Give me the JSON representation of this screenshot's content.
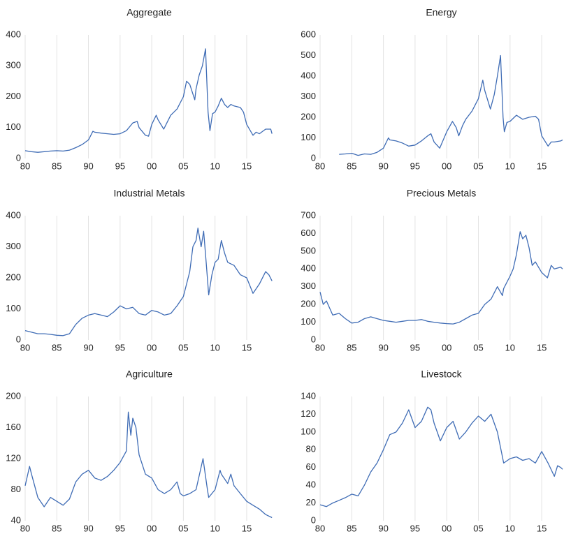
{
  "chart_data": [
    {
      "type": "line",
      "title": "Aggregate",
      "color": "#3f6cb5",
      "grid": true,
      "x": [
        1980,
        1981,
        1982,
        1983,
        1984,
        1985,
        1986,
        1987,
        1988,
        1989,
        1990,
        1990.7,
        1991,
        1992,
        1993,
        1994,
        1995,
        1996,
        1997,
        1997.7,
        1998,
        1999,
        1999.5,
        2000,
        2000.7,
        2001,
        2001.9,
        2002.5,
        2003,
        2004,
        2005,
        2005.5,
        2006,
        2006.8,
        2007,
        2007.5,
        2008,
        2008.5,
        2008.9,
        2009.2,
        2009.6,
        2010,
        2010.5,
        2011,
        2011.5,
        2012,
        2012.5,
        2013,
        2014,
        2014.5,
        2015,
        2016,
        2016.5,
        2017,
        2018,
        2018.8,
        2019
      ],
      "values": [
        25,
        22,
        20,
        22,
        24,
        25,
        24,
        27,
        35,
        45,
        60,
        88,
        85,
        82,
        80,
        78,
        80,
        90,
        115,
        120,
        100,
        75,
        72,
        110,
        140,
        125,
        95,
        120,
        140,
        160,
        200,
        250,
        240,
        190,
        225,
        270,
        300,
        355,
        150,
        90,
        145,
        150,
        170,
        195,
        175,
        165,
        175,
        170,
        165,
        150,
        110,
        75,
        85,
        80,
        95,
        95,
        80
      ],
      "xlim": [
        1980,
        2019.2
      ],
      "ylim": [
        0,
        400
      ],
      "yticks": [
        0,
        100,
        200,
        300,
        400
      ],
      "xticks": [
        {
          "value": 1980,
          "label": "80"
        },
        {
          "value": 1985,
          "label": "85"
        },
        {
          "value": 1990,
          "label": "90"
        },
        {
          "value": 1995,
          "label": "95"
        },
        {
          "value": 2000,
          "label": "00"
        },
        {
          "value": 2005,
          "label": "05"
        },
        {
          "value": 2010,
          "label": "10"
        },
        {
          "value": 2015,
          "label": "15"
        }
      ]
    },
    {
      "type": "line",
      "title": "Energy",
      "color": "#3f6cb5",
      "grid": true,
      "x": [
        1983,
        1984,
        1985,
        1986,
        1987,
        1988,
        1989,
        1990,
        1990.8,
        1991,
        1992,
        1993,
        1994,
        1995,
        1996,
        1997,
        1997.5,
        1998,
        1998.9,
        2000,
        2000.9,
        2001.5,
        2001.9,
        2002.5,
        2003,
        2004,
        2005,
        2005.7,
        2006,
        2006.9,
        2007.5,
        2008,
        2008.5,
        2008.9,
        2009.1,
        2009.5,
        2010,
        2011,
        2012,
        2013,
        2014,
        2014.5,
        2015,
        2016,
        2016.5,
        2017,
        2018,
        2018.3
      ],
      "values": [
        20,
        22,
        25,
        15,
        22,
        20,
        30,
        50,
        100,
        90,
        85,
        75,
        60,
        65,
        85,
        110,
        120,
        80,
        50,
        130,
        180,
        150,
        110,
        160,
        190,
        230,
        290,
        380,
        330,
        240,
        310,
        400,
        500,
        200,
        130,
        175,
        180,
        210,
        190,
        200,
        205,
        190,
        110,
        60,
        80,
        80,
        85,
        90
      ],
      "xlim": [
        1980,
        2018.3
      ],
      "ylim": [
        0,
        600
      ],
      "yticks": [
        0,
        100,
        200,
        300,
        400,
        500,
        600
      ],
      "xticks": [
        {
          "value": 1980,
          "label": "80"
        },
        {
          "value": 1985,
          "label": "85"
        },
        {
          "value": 1990,
          "label": "90"
        },
        {
          "value": 1995,
          "label": "95"
        },
        {
          "value": 2000,
          "label": "00"
        },
        {
          "value": 2005,
          "label": "05"
        },
        {
          "value": 2010,
          "label": "10"
        },
        {
          "value": 2015,
          "label": "15"
        }
      ]
    },
    {
      "type": "line",
      "title": "Industrial Metals",
      "color": "#3f6cb5",
      "grid": true,
      "x": [
        1980,
        1981,
        1982,
        1983,
        1984,
        1985,
        1986,
        1987,
        1988,
        1989,
        1990,
        1991,
        1992,
        1993,
        1994,
        1995,
        1996,
        1997,
        1998,
        1999,
        2000,
        2001,
        2002,
        2003,
        2004,
        2005,
        2006,
        2006.5,
        2007,
        2007.3,
        2007.8,
        2008.2,
        2008.6,
        2009,
        2009.5,
        2010,
        2010.5,
        2011,
        2011.5,
        2012,
        2013,
        2014,
        2015,
        2016,
        2017,
        2018,
        2018.5,
        2019
      ],
      "values": [
        30,
        25,
        20,
        20,
        18,
        15,
        14,
        20,
        50,
        70,
        80,
        85,
        80,
        75,
        90,
        110,
        100,
        105,
        85,
        80,
        95,
        90,
        80,
        85,
        110,
        140,
        220,
        300,
        320,
        360,
        300,
        350,
        250,
        145,
        210,
        250,
        260,
        320,
        280,
        250,
        240,
        210,
        200,
        150,
        180,
        220,
        210,
        190
      ],
      "xlim": [
        1980,
        2019.2
      ],
      "ylim": [
        0,
        400
      ],
      "yticks": [
        0,
        100,
        200,
        300,
        400
      ],
      "xticks": [
        {
          "value": 1980,
          "label": "80"
        },
        {
          "value": 1985,
          "label": "85"
        },
        {
          "value": 1990,
          "label": "90"
        },
        {
          "value": 1995,
          "label": "95"
        },
        {
          "value": 2000,
          "label": "00"
        },
        {
          "value": 2005,
          "label": "05"
        },
        {
          "value": 2010,
          "label": "10"
        },
        {
          "value": 2015,
          "label": "15"
        }
      ]
    },
    {
      "type": "line",
      "title": "Precious Metals",
      "color": "#3f6cb5",
      "grid": true,
      "x": [
        1980,
        1980.5,
        1981,
        1982,
        1983,
        1984,
        1985,
        1986,
        1987,
        1988,
        1989,
        1990,
        1991,
        1992,
        1993,
        1994,
        1995,
        1996,
        1997,
        1998,
        1999,
        2000,
        2001,
        2002,
        2003,
        2004,
        2005,
        2006,
        2007,
        2008,
        2008.8,
        2009,
        2010,
        2010.5,
        2011,
        2011.6,
        2012,
        2012.5,
        2013,
        2013.5,
        2014,
        2015,
        2015.9,
        2016.5,
        2017,
        2018,
        2018.3
      ],
      "values": [
        270,
        200,
        220,
        140,
        150,
        120,
        95,
        100,
        120,
        130,
        120,
        110,
        105,
        100,
        105,
        110,
        110,
        115,
        105,
        100,
        95,
        92,
        90,
        100,
        120,
        140,
        150,
        200,
        230,
        300,
        250,
        290,
        360,
        400,
        480,
        610,
        570,
        590,
        520,
        420,
        440,
        380,
        350,
        420,
        400,
        410,
        400
      ],
      "xlim": [
        1980,
        2018.3
      ],
      "ylim": [
        0,
        700
      ],
      "yticks": [
        0,
        100,
        200,
        300,
        400,
        500,
        600,
        700
      ],
      "xticks": [
        {
          "value": 1980,
          "label": "80"
        },
        {
          "value": 1985,
          "label": "85"
        },
        {
          "value": 1990,
          "label": "90"
        },
        {
          "value": 1995,
          "label": "95"
        },
        {
          "value": 2000,
          "label": "00"
        },
        {
          "value": 2005,
          "label": "05"
        },
        {
          "value": 2010,
          "label": "10"
        },
        {
          "value": 2015,
          "label": "15"
        }
      ]
    },
    {
      "type": "line",
      "title": "Agriculture",
      "color": "#3f6cb5",
      "grid": true,
      "x": [
        1980,
        1980.7,
        1981,
        1982,
        1983,
        1984,
        1985,
        1986,
        1987,
        1988,
        1989,
        1990,
        1991,
        1992,
        1993,
        1994,
        1995,
        1996,
        1996.3,
        1996.7,
        1997,
        1997.5,
        1998,
        1999,
        2000,
        2001,
        2002,
        2003,
        2004,
        2004.5,
        2005,
        2006,
        2007,
        2008.1,
        2008.8,
        2009,
        2010,
        2010.8,
        2011,
        2012,
        2012.5,
        2013,
        2014,
        2015,
        2016,
        2017,
        2018,
        2019
      ],
      "values": [
        85,
        110,
        100,
        70,
        58,
        70,
        65,
        60,
        68,
        90,
        100,
        105,
        95,
        92,
        97,
        105,
        115,
        130,
        180,
        150,
        172,
        160,
        125,
        100,
        95,
        80,
        75,
        80,
        90,
        75,
        72,
        75,
        80,
        120,
        80,
        70,
        80,
        105,
        100,
        88,
        100,
        85,
        75,
        65,
        60,
        55,
        48,
        44
      ],
      "xlim": [
        1980,
        2019.2
      ],
      "ylim": [
        40,
        200
      ],
      "yticks": [
        40,
        80,
        120,
        160,
        200
      ],
      "xticks": [
        {
          "value": 1980,
          "label": "80"
        },
        {
          "value": 1985,
          "label": "85"
        },
        {
          "value": 1990,
          "label": "90"
        },
        {
          "value": 1995,
          "label": "95"
        },
        {
          "value": 2000,
          "label": "00"
        },
        {
          "value": 2005,
          "label": "05"
        },
        {
          "value": 2010,
          "label": "10"
        },
        {
          "value": 2015,
          "label": "15"
        }
      ]
    },
    {
      "type": "line",
      "title": "Livestock",
      "color": "#3f6cb5",
      "grid": true,
      "x": [
        1980,
        1981,
        1982,
        1983,
        1984,
        1985,
        1986,
        1987,
        1988,
        1989,
        1990,
        1991,
        1992,
        1993,
        1994,
        1995,
        1996,
        1997,
        1997.5,
        1998,
        1999,
        2000,
        2001,
        2002,
        2003,
        2004,
        2005,
        2006,
        2007,
        2008,
        2009,
        2010,
        2011,
        2012,
        2013,
        2014,
        2015,
        2016,
        2017,
        2017.5,
        2018,
        2018.3
      ],
      "values": [
        18,
        16,
        20,
        23,
        26,
        30,
        28,
        40,
        55,
        65,
        80,
        97,
        100,
        110,
        125,
        105,
        112,
        128,
        125,
        110,
        90,
        105,
        112,
        92,
        100,
        110,
        118,
        112,
        120,
        100,
        65,
        70,
        72,
        68,
        70,
        65,
        78,
        65,
        50,
        62,
        60,
        58
      ],
      "xlim": [
        1980,
        2018.3
      ],
      "ylim": [
        0,
        140
      ],
      "yticks": [
        0,
        20,
        40,
        60,
        80,
        100,
        120,
        140
      ],
      "xticks": [
        {
          "value": 1980,
          "label": "80"
        },
        {
          "value": 1985,
          "label": "85"
        },
        {
          "value": 1990,
          "label": "90"
        },
        {
          "value": 1995,
          "label": "95"
        },
        {
          "value": 2000,
          "label": "00"
        },
        {
          "value": 2005,
          "label": "05"
        },
        {
          "value": 2010,
          "label": "10"
        },
        {
          "value": 2015,
          "label": "15"
        }
      ]
    }
  ]
}
